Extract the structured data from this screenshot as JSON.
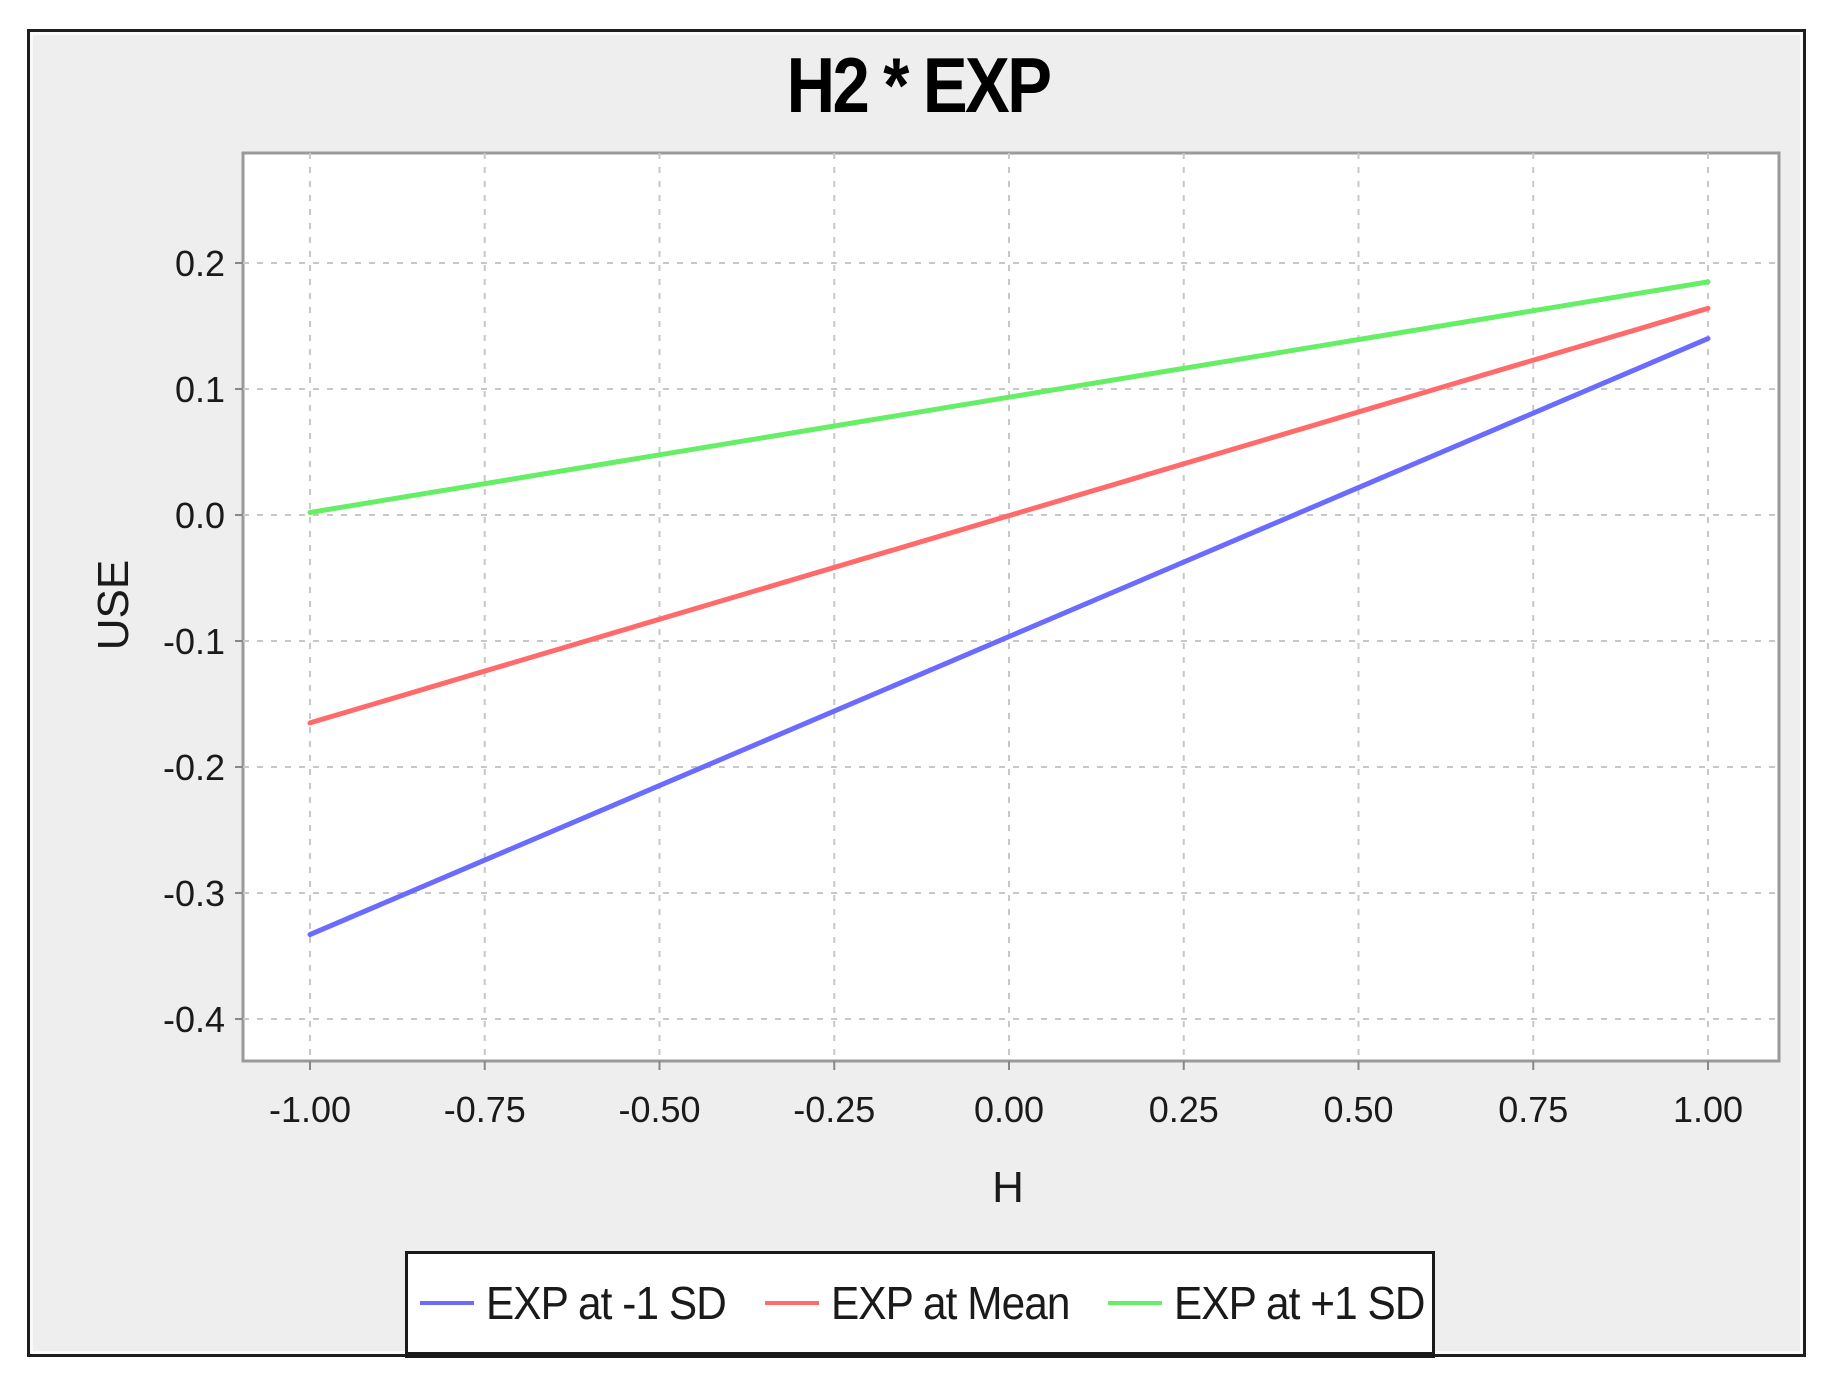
{
  "chart_data": {
    "type": "line",
    "title": "H2 * EXP",
    "xlabel": "H",
    "ylabel": "USE",
    "xlim": [
      -1.1,
      1.2
    ],
    "ylim": [
      -0.43,
      0.29
    ],
    "x_ticks": [
      "-1.00",
      "-0.75",
      "-0.50",
      "-0.25",
      "0.00",
      "0.25",
      "0.50",
      "0.75",
      "1.00"
    ],
    "y_ticks": [
      "0.2",
      "0.1",
      "0.0",
      "-0.1",
      "-0.2",
      "-0.3",
      "-0.4"
    ],
    "grid": true,
    "legend_position": "bottom",
    "x": [
      -1.0,
      1.0
    ],
    "series": [
      {
        "name": "EXP at -1 SD",
        "color": "#6b6bff",
        "values": [
          -0.333,
          0.14
        ]
      },
      {
        "name": "EXP at Mean",
        "color": "#ff6b6b",
        "values": [
          -0.165,
          0.164
        ]
      },
      {
        "name": "EXP at +1 SD",
        "color": "#66ee66",
        "values": [
          0.002,
          0.185
        ]
      }
    ]
  },
  "legend": {
    "items": [
      {
        "label": "EXP at -1 SD",
        "color": "#6b6bff"
      },
      {
        "label": "EXP at Mean",
        "color": "#ff6b6b"
      },
      {
        "label": "EXP at +1 SD",
        "color": "#66ee66"
      }
    ]
  }
}
